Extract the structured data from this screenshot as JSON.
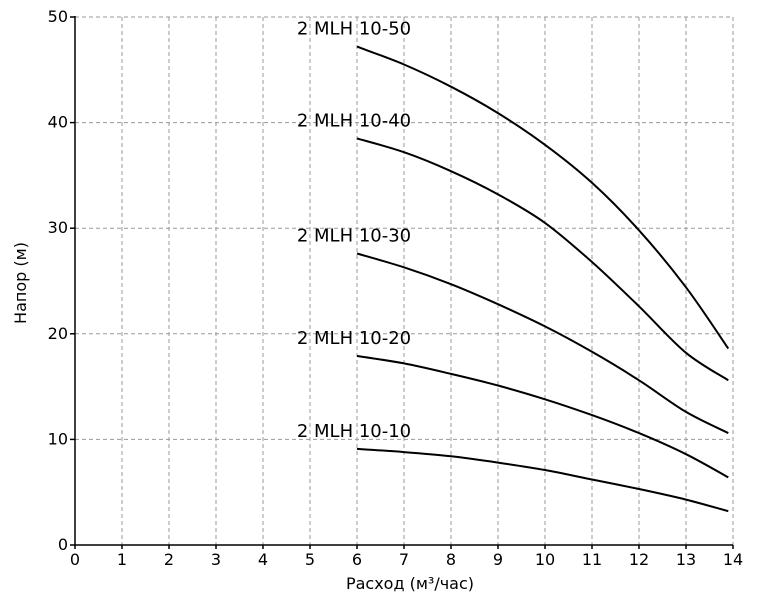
{
  "chart_data": {
    "type": "line",
    "xlabel": "Расход (м³/час)",
    "ylabel": "Напор (м)",
    "xlim": [
      0,
      14
    ],
    "ylim": [
      0,
      50
    ],
    "x_ticks": [
      "0",
      "1",
      "2",
      "3",
      "4",
      "5",
      "6",
      "7",
      "8",
      "9",
      "10",
      "11",
      "12",
      "13",
      "14"
    ],
    "y_ticks": [
      "0",
      "10",
      "20",
      "30",
      "40",
      "50"
    ],
    "grid": true,
    "series": [
      {
        "name": "2 MLH 10-50",
        "x": [
          6,
          7,
          8,
          9,
          10,
          11,
          12,
          13,
          13.9
        ],
        "y": [
          47.2,
          45.5,
          43.4,
          40.9,
          37.9,
          34.3,
          29.8,
          24.4,
          18.6
        ]
      },
      {
        "name": "2 MLH 10-40",
        "x": [
          6,
          7,
          8,
          9,
          10,
          11,
          12,
          13,
          13.9
        ],
        "y": [
          38.5,
          37.2,
          35.4,
          33.2,
          30.5,
          26.8,
          22.6,
          18.2,
          15.6
        ]
      },
      {
        "name": "2 MLH 10-30",
        "x": [
          6,
          7,
          8,
          9,
          10,
          11,
          12,
          13,
          13.9
        ],
        "y": [
          27.6,
          26.3,
          24.7,
          22.8,
          20.7,
          18.3,
          15.6,
          12.6,
          10.6
        ]
      },
      {
        "name": "2 MLH 10-20",
        "x": [
          6,
          7,
          8,
          9,
          10,
          11,
          12,
          13,
          13.9
        ],
        "y": [
          17.9,
          17.2,
          16.2,
          15.1,
          13.8,
          12.3,
          10.6,
          8.6,
          6.4
        ]
      },
      {
        "name": "2 MLH 10-10",
        "x": [
          6,
          7,
          8,
          9,
          10,
          11,
          12,
          13,
          13.9
        ],
        "y": [
          9.1,
          8.8,
          8.4,
          7.8,
          7.1,
          6.2,
          5.3,
          4.3,
          3.2
        ]
      }
    ]
  }
}
